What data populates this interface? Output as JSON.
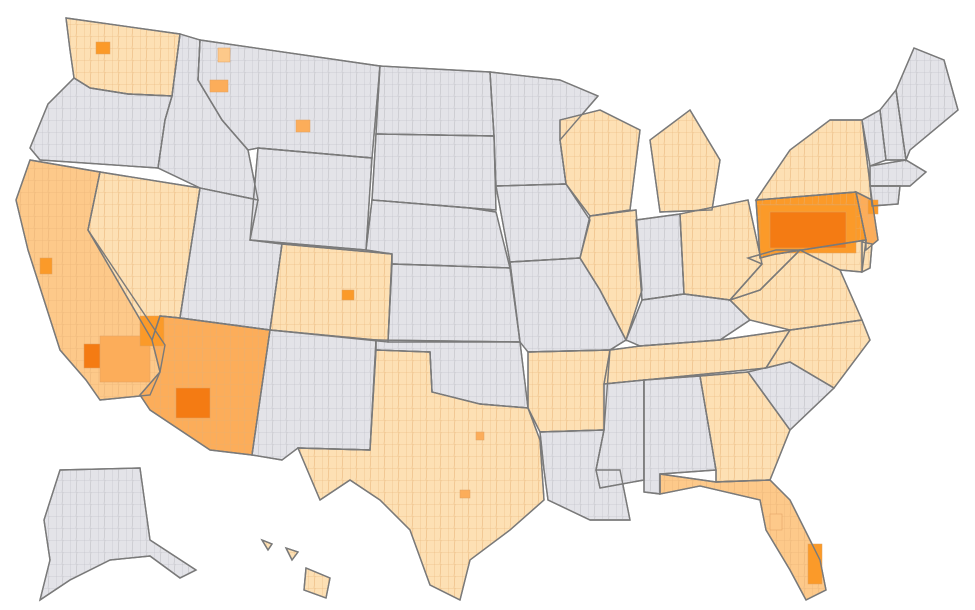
{
  "map": {
    "projection": "albers-usa",
    "unit": "county",
    "colors": {
      "no_data": "#e3e3e8",
      "border_state": "#7a7a7a",
      "border_county": "#b3b3b8",
      "level_1": "#fde0b4",
      "level_2": "#fdc98a",
      "level_3": "#fcad5a",
      "level_4": "#fb9a29",
      "level_5": "#f47b13"
    },
    "states": [
      {
        "name": "WA",
        "level": 1
      },
      {
        "name": "OR",
        "level": 0
      },
      {
        "name": "CA",
        "level": 2
      },
      {
        "name": "NV",
        "level": 1
      },
      {
        "name": "ID",
        "level": 0
      },
      {
        "name": "MT",
        "level": 0
      },
      {
        "name": "WY",
        "level": 0
      },
      {
        "name": "UT",
        "level": 0
      },
      {
        "name": "AZ",
        "level": 3
      },
      {
        "name": "CO",
        "level": 1
      },
      {
        "name": "NM",
        "level": 0
      },
      {
        "name": "ND",
        "level": 0
      },
      {
        "name": "SD",
        "level": 0
      },
      {
        "name": "NE",
        "level": 0
      },
      {
        "name": "KS",
        "level": 0
      },
      {
        "name": "OK",
        "level": 0
      },
      {
        "name": "TX",
        "level": 1
      },
      {
        "name": "MN",
        "level": 0
      },
      {
        "name": "IA",
        "level": 0
      },
      {
        "name": "MO",
        "level": 0
      },
      {
        "name": "AR",
        "level": 1
      },
      {
        "name": "LA",
        "level": 0
      },
      {
        "name": "WI",
        "level": 1
      },
      {
        "name": "IL",
        "level": 1
      },
      {
        "name": "MI",
        "level": 1
      },
      {
        "name": "IN",
        "level": 0
      },
      {
        "name": "OH",
        "level": 1
      },
      {
        "name": "KY",
        "level": 0
      },
      {
        "name": "TN",
        "level": 1
      },
      {
        "name": "MS",
        "level": 0
      },
      {
        "name": "AL",
        "level": 0
      },
      {
        "name": "GA",
        "level": 1
      },
      {
        "name": "FL",
        "level": 2
      },
      {
        "name": "SC",
        "level": 0
      },
      {
        "name": "NC",
        "level": 1
      },
      {
        "name": "VA",
        "level": 1
      },
      {
        "name": "WV",
        "level": 1
      },
      {
        "name": "PA",
        "level": 4
      },
      {
        "name": "NY",
        "level": 1
      },
      {
        "name": "VT",
        "level": 0
      },
      {
        "name": "NH",
        "level": 0
      },
      {
        "name": "ME",
        "level": 0
      },
      {
        "name": "MA",
        "level": 0
      },
      {
        "name": "CT",
        "level": 0
      },
      {
        "name": "NJ",
        "level": 3
      },
      {
        "name": "MD",
        "level": 1
      },
      {
        "name": "DE",
        "level": 1
      },
      {
        "name": "AK",
        "level": 0
      },
      {
        "name": "HI",
        "level": 1
      }
    ]
  }
}
